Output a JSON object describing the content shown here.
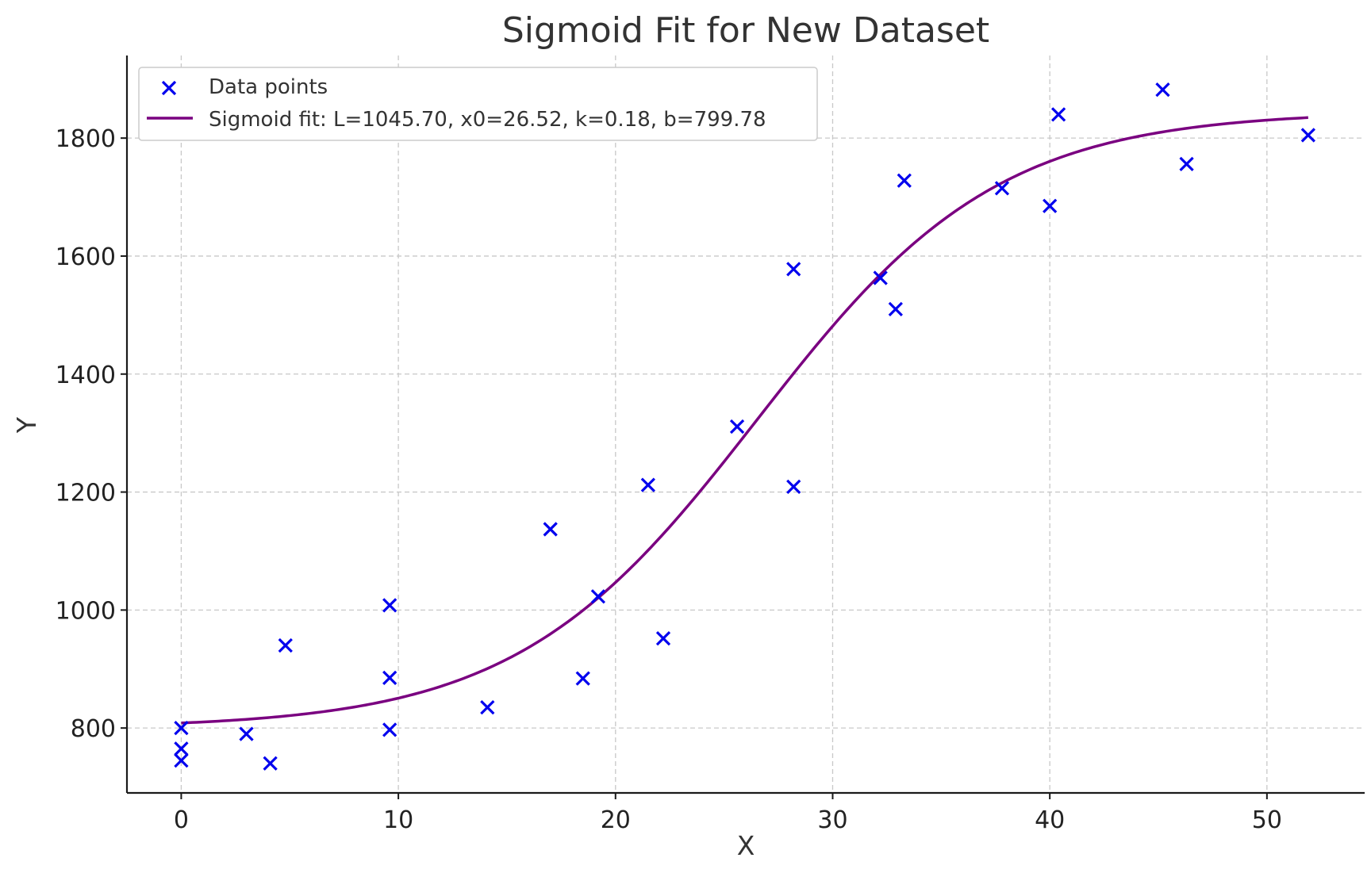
{
  "chart_data": {
    "type": "scatter",
    "title": "Sigmoid Fit for New Dataset",
    "xlabel": "X",
    "ylabel": "Y",
    "xlim": [
      -2.5,
      54.5
    ],
    "ylim": [
      690,
      1940
    ],
    "xticks": [
      0,
      10,
      20,
      30,
      40,
      50
    ],
    "yticks": [
      800,
      1000,
      1200,
      1400,
      1600,
      1800
    ],
    "grid": true,
    "legend_position": "top-left",
    "series": [
      {
        "name": "Data points",
        "kind": "scatter",
        "marker": "x",
        "color": "#0000ee",
        "points": [
          [
            0,
            800
          ],
          [
            0,
            765
          ],
          [
            0,
            745
          ],
          [
            3,
            790
          ],
          [
            4.1,
            740
          ],
          [
            4.8,
            940
          ],
          [
            9.6,
            1008
          ],
          [
            9.6,
            885
          ],
          [
            9.6,
            797
          ],
          [
            14.1,
            835
          ],
          [
            17.0,
            1137
          ],
          [
            18.5,
            884
          ],
          [
            19.2,
            1023
          ],
          [
            21.5,
            1212
          ],
          [
            22.2,
            952
          ],
          [
            25.6,
            1311
          ],
          [
            28.2,
            1578
          ],
          [
            28.2,
            1209
          ],
          [
            32.2,
            1563
          ],
          [
            32.9,
            1510
          ],
          [
            33.3,
            1728
          ],
          [
            37.8,
            1715
          ],
          [
            40.0,
            1685
          ],
          [
            40.4,
            1840
          ],
          [
            45.2,
            1882
          ],
          [
            46.3,
            1756
          ],
          [
            51.9,
            1805
          ]
        ]
      },
      {
        "name": "Sigmoid fit: L=1045.70, x0=26.52, k=0.18, b=799.78",
        "kind": "line",
        "color": "#7a0080",
        "model": "sigmoid",
        "params": {
          "L": 1045.7,
          "x0": 26.52,
          "k": 0.18,
          "b": 799.78
        },
        "x_range": [
          0,
          51.9
        ]
      }
    ]
  }
}
